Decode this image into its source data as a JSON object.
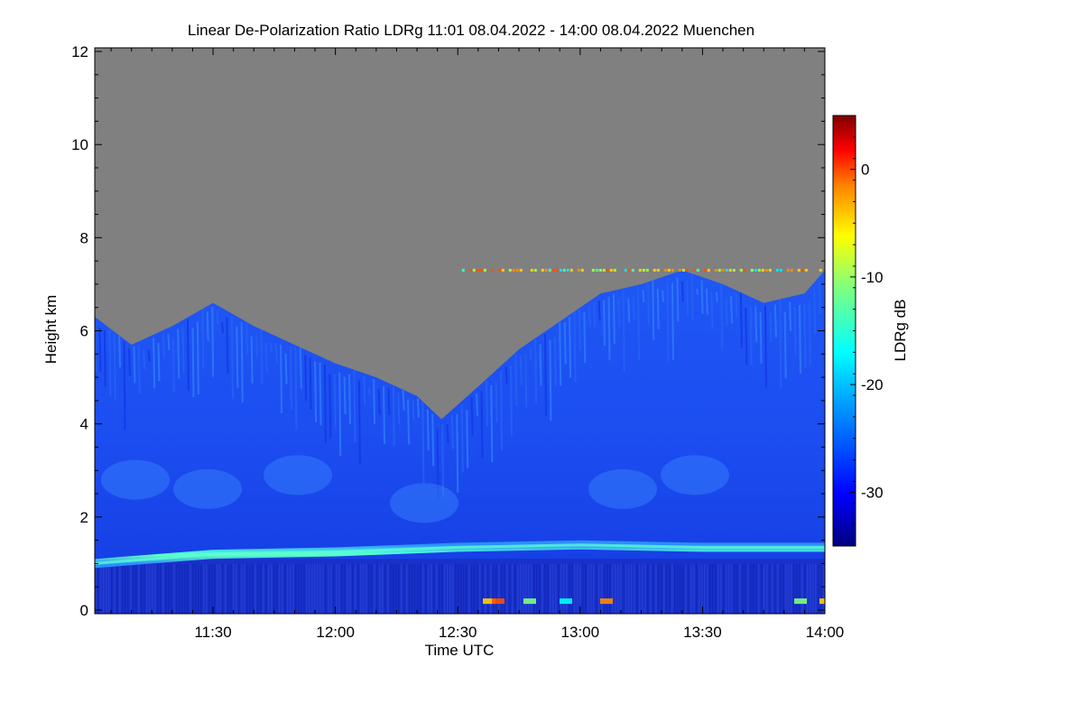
{
  "chart_data": {
    "type": "heatmap",
    "title": "Linear De-Polarization Ratio LDRg   11:01 08.04.2022 - 14:00 08.04.2022 Muenchen",
    "xlabel": "Time UTC",
    "ylabel": "Height km",
    "colorbar_label": "LDRg dB",
    "x_range": [
      "11:01",
      "14:00"
    ],
    "x_ticks": [
      "11:30",
      "12:00",
      "12:30",
      "13:00",
      "13:30",
      "14:00"
    ],
    "ylim": [
      0,
      12
    ],
    "y_ticks": [
      "0",
      "2",
      "4",
      "6",
      "8",
      "10",
      "12"
    ],
    "colorbar_range": [
      -35,
      5
    ],
    "colorbar_ticks": [
      "0",
      "-10",
      "-20",
      "-30"
    ],
    "no_signal_color": "#808080",
    "colormap": [
      "#00007f",
      "#0000ff",
      "#007fff",
      "#00ffff",
      "#7fff7f",
      "#ffff00",
      "#ff7f00",
      "#ff0000",
      "#7f0000"
    ],
    "cloud_top_km": [
      {
        "time": "11:01",
        "height": 6.3
      },
      {
        "time": "11:10",
        "height": 5.7
      },
      {
        "time": "11:20",
        "height": 6.1
      },
      {
        "time": "11:30",
        "height": 6.6
      },
      {
        "time": "11:40",
        "height": 6.1
      },
      {
        "time": "11:50",
        "height": 5.7
      },
      {
        "time": "12:00",
        "height": 5.3
      },
      {
        "time": "12:10",
        "height": 5.0
      },
      {
        "time": "12:20",
        "height": 4.6
      },
      {
        "time": "12:26",
        "height": 4.1
      },
      {
        "time": "12:35",
        "height": 4.8
      },
      {
        "time": "12:45",
        "height": 5.6
      },
      {
        "time": "12:55",
        "height": 6.2
      },
      {
        "time": "13:05",
        "height": 6.8
      },
      {
        "time": "13:15",
        "height": 7.0
      },
      {
        "time": "13:25",
        "height": 7.3
      },
      {
        "time": "13:35",
        "height": 7.0
      },
      {
        "time": "13:45",
        "height": 6.6
      },
      {
        "time": "13:55",
        "height": 6.8
      },
      {
        "time": "14:00",
        "height": 7.3
      }
    ],
    "boundary_layer_km": [
      {
        "time": "11:01",
        "height": 1.0
      },
      {
        "time": "11:30",
        "height": 1.2
      },
      {
        "time": "12:00",
        "height": 1.25
      },
      {
        "time": "12:30",
        "height": 1.35
      },
      {
        "time": "13:00",
        "height": 1.4
      },
      {
        "time": "13:30",
        "height": 1.35
      },
      {
        "time": "14:00",
        "height": 1.35
      }
    ],
    "elevated_layer": {
      "height": 7.3,
      "time_start": "12:31",
      "time_end": "14:00"
    }
  }
}
